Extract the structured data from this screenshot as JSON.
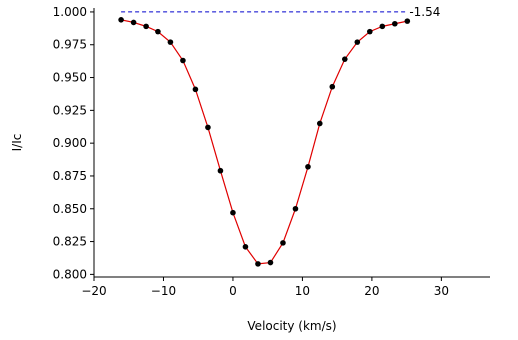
{
  "chart_data": {
    "type": "line",
    "title": "",
    "xlabel": "Velocity (km/s)",
    "ylabel": "I/Ic",
    "xlim": [
      -20,
      37
    ],
    "ylim": [
      0.798,
      1.003
    ],
    "xticks": [
      -20,
      -10,
      0,
      10,
      20,
      30
    ],
    "xtick_labels": [
      "−20",
      "−10",
      "0",
      "10",
      "20",
      "30"
    ],
    "yticks": [
      0.8,
      0.825,
      0.85,
      0.875,
      0.9,
      0.925,
      0.95,
      0.975,
      1.0
    ],
    "ytick_labels": [
      "0.800",
      "0.825",
      "0.850",
      "0.875",
      "0.900",
      "0.925",
      "0.950",
      "0.975",
      "1.000"
    ],
    "grid": false,
    "spines": [
      "left",
      "bottom"
    ],
    "series": [
      {
        "kind": "observed",
        "marker": "dot",
        "color": "#000000",
        "x": [
          -16.1,
          -14.3,
          -12.5,
          -10.8,
          -9.0,
          -7.2,
          -5.4,
          -3.6,
          -1.8,
          0.0,
          1.8,
          3.6,
          5.4,
          7.2,
          9.0,
          10.8,
          12.5,
          14.3,
          16.1,
          17.9,
          19.7,
          21.5,
          23.3,
          25.1
        ],
        "y": [
          0.994,
          0.992,
          0.989,
          0.985,
          0.977,
          0.963,
          0.941,
          0.912,
          0.879,
          0.847,
          0.821,
          0.808,
          0.809,
          0.824,
          0.85,
          0.882,
          0.915,
          0.943,
          0.964,
          0.977,
          0.985,
          0.989,
          0.991,
          0.993
        ]
      },
      {
        "kind": "model",
        "marker": "none",
        "color": "#e00000",
        "x": [
          -16.1,
          -14.3,
          -12.5,
          -10.8,
          -9.0,
          -7.2,
          -5.4,
          -3.6,
          -1.8,
          0.0,
          1.8,
          3.6,
          5.4,
          7.2,
          9.0,
          10.8,
          12.5,
          14.3,
          16.1,
          17.9,
          19.7,
          21.5,
          23.3,
          25.1
        ],
        "y": [
          0.994,
          0.992,
          0.989,
          0.985,
          0.977,
          0.963,
          0.941,
          0.912,
          0.879,
          0.847,
          0.821,
          0.808,
          0.809,
          0.824,
          0.85,
          0.882,
          0.915,
          0.943,
          0.964,
          0.977,
          0.985,
          0.989,
          0.991,
          0.993
        ]
      },
      {
        "kind": "continuum",
        "marker": "none",
        "linestyle": "dashed",
        "color": "#0000cc",
        "x": [
          -16.1,
          25.1
        ],
        "y": [
          1.0,
          1.0
        ]
      }
    ],
    "annotations": [
      {
        "text": "-1.54",
        "x": 25.1,
        "y": 1.0
      }
    ]
  }
}
